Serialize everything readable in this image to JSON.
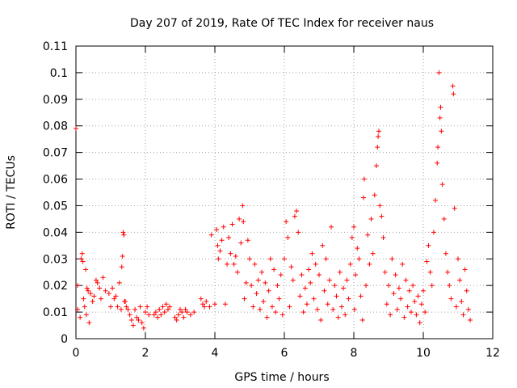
{
  "chart_data": {
    "type": "scatter",
    "title": "Day 207 of 2019, Rate Of TEC Index for receiver naus",
    "xlabel": "GPS time / hours",
    "ylabel": "ROTI / TECUs",
    "xlim": [
      0,
      12
    ],
    "ylim": [
      0,
      0.11
    ],
    "xticks": [
      0,
      2,
      4,
      6,
      8,
      10,
      12
    ],
    "xtick_labels": [
      "0",
      "2",
      "4",
      "6",
      "8",
      "10",
      "12"
    ],
    "yticks": [
      0,
      0.01,
      0.02,
      0.03,
      0.04,
      0.05,
      0.06,
      0.07,
      0.08,
      0.09,
      0.1,
      0.11
    ],
    "ytick_labels": [
      "0",
      "0.01",
      "0.02",
      "0.03",
      "0.04",
      "0.05",
      "0.06",
      "0.07",
      "0.08",
      "0.09",
      "0.1",
      "0.11"
    ],
    "grid": true,
    "marker": "+",
    "color": "#ff0000",
    "series": [
      {
        "name": "ROTI",
        "points": [
          [
            0.0,
            0.079
          ],
          [
            0.05,
            0.02
          ],
          [
            0.05,
            0.011
          ],
          [
            0.12,
            0.008
          ],
          [
            0.15,
            0.03
          ],
          [
            0.18,
            0.032
          ],
          [
            0.2,
            0.029
          ],
          [
            0.22,
            0.015
          ],
          [
            0.25,
            0.012
          ],
          [
            0.28,
            0.026
          ],
          [
            0.3,
            0.009
          ],
          [
            0.32,
            0.019
          ],
          [
            0.35,
            0.018
          ],
          [
            0.38,
            0.006
          ],
          [
            0.42,
            0.017
          ],
          [
            0.48,
            0.014
          ],
          [
            0.52,
            0.016
          ],
          [
            0.58,
            0.022
          ],
          [
            0.62,
            0.021
          ],
          [
            0.68,
            0.019
          ],
          [
            0.72,
            0.015
          ],
          [
            0.78,
            0.023
          ],
          [
            0.85,
            0.018
          ],
          [
            0.95,
            0.017
          ],
          [
            1.0,
            0.012
          ],
          [
            1.05,
            0.019
          ],
          [
            1.1,
            0.015
          ],
          [
            1.15,
            0.016
          ],
          [
            1.2,
            0.012
          ],
          [
            1.25,
            0.021
          ],
          [
            1.3,
            0.011
          ],
          [
            1.32,
            0.027
          ],
          [
            1.34,
            0.031
          ],
          [
            1.36,
            0.04
          ],
          [
            1.38,
            0.039
          ],
          [
            1.4,
            0.014
          ],
          [
            1.42,
            0.014
          ],
          [
            1.45,
            0.012
          ],
          [
            1.5,
            0.011
          ],
          [
            1.55,
            0.009
          ],
          [
            1.6,
            0.007
          ],
          [
            1.65,
            0.005
          ],
          [
            1.7,
            0.011
          ],
          [
            1.75,
            0.008
          ],
          [
            1.8,
            0.007
          ],
          [
            1.85,
            0.012
          ],
          [
            1.9,
            0.006
          ],
          [
            1.95,
            0.004
          ],
          [
            2.0,
            0.01
          ],
          [
            2.05,
            0.012
          ],
          [
            2.1,
            0.009
          ],
          [
            2.25,
            0.009
          ],
          [
            2.3,
            0.01
          ],
          [
            2.35,
            0.008
          ],
          [
            2.4,
            0.011
          ],
          [
            2.45,
            0.009
          ],
          [
            2.5,
            0.012
          ],
          [
            2.55,
            0.01
          ],
          [
            2.6,
            0.013
          ],
          [
            2.65,
            0.011
          ],
          [
            2.7,
            0.012
          ],
          [
            2.85,
            0.008
          ],
          [
            2.9,
            0.007
          ],
          [
            2.95,
            0.009
          ],
          [
            3.0,
            0.011
          ],
          [
            3.05,
            0.01
          ],
          [
            3.1,
            0.008
          ],
          [
            3.15,
            0.011
          ],
          [
            3.2,
            0.01
          ],
          [
            3.3,
            0.009
          ],
          [
            3.4,
            0.01
          ],
          [
            3.6,
            0.015
          ],
          [
            3.65,
            0.013
          ],
          [
            3.7,
            0.012
          ],
          [
            3.75,
            0.014
          ],
          [
            3.85,
            0.012
          ],
          [
            3.9,
            0.039
          ],
          [
            4.0,
            0.013
          ],
          [
            4.05,
            0.041
          ],
          [
            4.08,
            0.035
          ],
          [
            4.1,
            0.03
          ],
          [
            4.15,
            0.033
          ],
          [
            4.2,
            0.037
          ],
          [
            4.25,
            0.042
          ],
          [
            4.3,
            0.013
          ],
          [
            4.35,
            0.028
          ],
          [
            4.4,
            0.038
          ],
          [
            4.45,
            0.032
          ],
          [
            4.5,
            0.043
          ],
          [
            4.55,
            0.028
          ],
          [
            4.6,
            0.031
          ],
          [
            4.65,
            0.025
          ],
          [
            4.7,
            0.045
          ],
          [
            4.75,
            0.036
          ],
          [
            4.8,
            0.05
          ],
          [
            4.82,
            0.044
          ],
          [
            4.85,
            0.015
          ],
          [
            4.9,
            0.021
          ],
          [
            4.95,
            0.037
          ],
          [
            5.0,
            0.03
          ],
          [
            5.05,
            0.02
          ],
          [
            5.1,
            0.012
          ],
          [
            5.15,
            0.028
          ],
          [
            5.2,
            0.017
          ],
          [
            5.25,
            0.022
          ],
          [
            5.3,
            0.011
          ],
          [
            5.35,
            0.025
          ],
          [
            5.4,
            0.014
          ],
          [
            5.45,
            0.021
          ],
          [
            5.5,
            0.008
          ],
          [
            5.55,
            0.018
          ],
          [
            5.6,
            0.03
          ],
          [
            5.65,
            0.012
          ],
          [
            5.7,
            0.026
          ],
          [
            5.75,
            0.01
          ],
          [
            5.8,
            0.02
          ],
          [
            5.85,
            0.015
          ],
          [
            5.9,
            0.024
          ],
          [
            5.95,
            0.009
          ],
          [
            6.0,
            0.03
          ],
          [
            6.05,
            0.044
          ],
          [
            6.1,
            0.038
          ],
          [
            6.15,
            0.012
          ],
          [
            6.2,
            0.027
          ],
          [
            6.25,
            0.022
          ],
          [
            6.3,
            0.046
          ],
          [
            6.35,
            0.048
          ],
          [
            6.4,
            0.04
          ],
          [
            6.45,
            0.016
          ],
          [
            6.5,
            0.024
          ],
          [
            6.55,
            0.01
          ],
          [
            6.6,
            0.019
          ],
          [
            6.65,
            0.013
          ],
          [
            6.7,
            0.026
          ],
          [
            6.75,
            0.021
          ],
          [
            6.8,
            0.032
          ],
          [
            6.85,
            0.015
          ],
          [
            6.9,
            0.028
          ],
          [
            6.95,
            0.011
          ],
          [
            7.0,
            0.024
          ],
          [
            7.05,
            0.007
          ],
          [
            7.1,
            0.035
          ],
          [
            7.15,
            0.018
          ],
          [
            7.2,
            0.03
          ],
          [
            7.25,
            0.013
          ],
          [
            7.3,
            0.022
          ],
          [
            7.35,
            0.042
          ],
          [
            7.4,
            0.011
          ],
          [
            7.45,
            0.02
          ],
          [
            7.5,
            0.016
          ],
          [
            7.55,
            0.008
          ],
          [
            7.6,
            0.025
          ],
          [
            7.65,
            0.012
          ],
          [
            7.7,
            0.019
          ],
          [
            7.75,
            0.009
          ],
          [
            7.8,
            0.022
          ],
          [
            7.85,
            0.015
          ],
          [
            7.9,
            0.028
          ],
          [
            7.95,
            0.038
          ],
          [
            8.0,
            0.042
          ],
          [
            8.02,
            0.011
          ],
          [
            8.05,
            0.024
          ],
          [
            8.1,
            0.034
          ],
          [
            8.15,
            0.03
          ],
          [
            8.2,
            0.016
          ],
          [
            8.25,
            0.007
          ],
          [
            8.28,
            0.053
          ],
          [
            8.3,
            0.06
          ],
          [
            8.35,
            0.02
          ],
          [
            8.4,
            0.039
          ],
          [
            8.45,
            0.028
          ],
          [
            8.5,
            0.045
          ],
          [
            8.55,
            0.032
          ],
          [
            8.6,
            0.054
          ],
          [
            8.65,
            0.065
          ],
          [
            8.68,
            0.072
          ],
          [
            8.7,
            0.076
          ],
          [
            8.72,
            0.078
          ],
          [
            8.75,
            0.05
          ],
          [
            8.8,
            0.046
          ],
          [
            8.85,
            0.038
          ],
          [
            8.9,
            0.025
          ],
          [
            8.95,
            0.013
          ],
          [
            9.0,
            0.02
          ],
          [
            9.05,
            0.009
          ],
          [
            9.1,
            0.03
          ],
          [
            9.15,
            0.017
          ],
          [
            9.2,
            0.024
          ],
          [
            9.25,
            0.011
          ],
          [
            9.3,
            0.019
          ],
          [
            9.35,
            0.015
          ],
          [
            9.4,
            0.028
          ],
          [
            9.45,
            0.008
          ],
          [
            9.5,
            0.022
          ],
          [
            9.55,
            0.012
          ],
          [
            9.6,
            0.018
          ],
          [
            9.65,
            0.01
          ],
          [
            9.7,
            0.02
          ],
          [
            9.75,
            0.014
          ],
          [
            9.8,
            0.009
          ],
          [
            9.85,
            0.016
          ],
          [
            9.9,
            0.006
          ],
          [
            9.95,
            0.013
          ],
          [
            10.0,
            0.018
          ],
          [
            10.05,
            0.01
          ],
          [
            10.1,
            0.029
          ],
          [
            10.15,
            0.035
          ],
          [
            10.2,
            0.025
          ],
          [
            10.25,
            0.02
          ],
          [
            10.3,
            0.04
          ],
          [
            10.35,
            0.052
          ],
          [
            10.4,
            0.066
          ],
          [
            10.42,
            0.072
          ],
          [
            10.45,
            0.1
          ],
          [
            10.48,
            0.083
          ],
          [
            10.5,
            0.087
          ],
          [
            10.52,
            0.078
          ],
          [
            10.55,
            0.058
          ],
          [
            10.6,
            0.045
          ],
          [
            10.65,
            0.032
          ],
          [
            10.7,
            0.025
          ],
          [
            10.75,
            0.02
          ],
          [
            10.8,
            0.015
          ],
          [
            10.85,
            0.095
          ],
          [
            10.87,
            0.092
          ],
          [
            10.9,
            0.049
          ],
          [
            10.95,
            0.012
          ],
          [
            11.0,
            0.03
          ],
          [
            11.05,
            0.022
          ],
          [
            11.1,
            0.014
          ],
          [
            11.15,
            0.009
          ],
          [
            11.2,
            0.026
          ],
          [
            11.25,
            0.018
          ],
          [
            11.3,
            0.011
          ],
          [
            11.35,
            0.007
          ]
        ]
      }
    ]
  }
}
